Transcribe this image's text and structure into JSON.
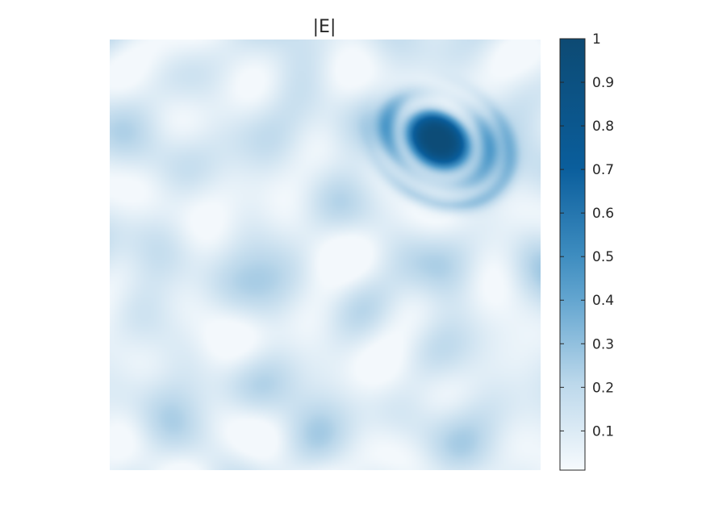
{
  "chart_data": {
    "type": "heatmap",
    "title": "|E|",
    "xlabel": "",
    "ylabel": "",
    "colorbar": {
      "range": [
        0.01,
        1
      ],
      "ticks": [
        0.1,
        0.2,
        0.3,
        0.4,
        0.5,
        0.6,
        0.7,
        0.8,
        0.9,
        1
      ],
      "tick_labels": [
        "0.1",
        "0.2",
        "0.3",
        "0.4",
        "0.5",
        "0.6",
        "0.7",
        "0.8",
        "0.9",
        "1"
      ],
      "colormap": [
        "#f6fafd",
        "#bcd8eb",
        "#4a97c8",
        "#0a5e9c",
        "#0d4a73"
      ]
    },
    "grid": false,
    "features": [
      {
        "description": "bright elliptical spot",
        "x_frac": 0.76,
        "y_frac": 0.23,
        "peak_value": 1.0
      },
      {
        "description": "surrounding ring fringes",
        "value_range": [
          0.2,
          0.45
        ]
      },
      {
        "description": "background speckle field",
        "value_range": [
          0.02,
          0.25
        ]
      }
    ]
  }
}
